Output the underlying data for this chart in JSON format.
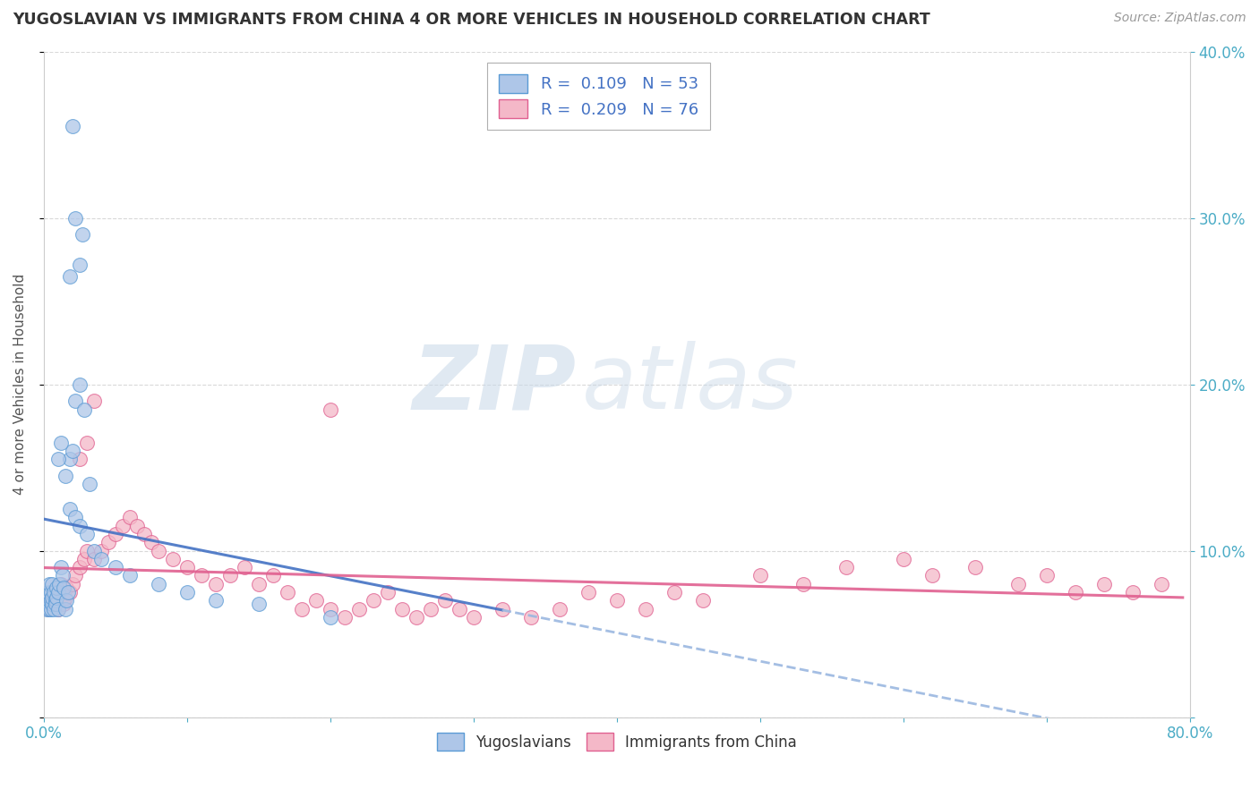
{
  "title": "YUGOSLAVIAN VS IMMIGRANTS FROM CHINA 4 OR MORE VEHICLES IN HOUSEHOLD CORRELATION CHART",
  "source": "Source: ZipAtlas.com",
  "ylabel": "4 or more Vehicles in Household",
  "xlim": [
    0.0,
    0.8
  ],
  "ylim": [
    0.0,
    0.4
  ],
  "series_blue": {
    "label": "Yugoslavians",
    "R": 0.109,
    "N": 53,
    "color": "#aec6e8",
    "edge_color": "#5b9bd5",
    "x": [
      0.002,
      0.003,
      0.003,
      0.004,
      0.004,
      0.005,
      0.005,
      0.005,
      0.006,
      0.006,
      0.006,
      0.007,
      0.007,
      0.008,
      0.008,
      0.009,
      0.009,
      0.01,
      0.01,
      0.011,
      0.012,
      0.013,
      0.014,
      0.015,
      0.016,
      0.017,
      0.018,
      0.02,
      0.022,
      0.025,
      0.028,
      0.032,
      0.01,
      0.012,
      0.015,
      0.018,
      0.022,
      0.025,
      0.03,
      0.035,
      0.04,
      0.05,
      0.06,
      0.08,
      0.1,
      0.12,
      0.15,
      0.2,
      0.025,
      0.027,
      0.022,
      0.02,
      0.018
    ],
    "y": [
      0.065,
      0.07,
      0.075,
      0.065,
      0.08,
      0.07,
      0.065,
      0.075,
      0.068,
      0.072,
      0.08,
      0.075,
      0.065,
      0.07,
      0.068,
      0.072,
      0.078,
      0.075,
      0.065,
      0.08,
      0.09,
      0.085,
      0.078,
      0.065,
      0.07,
      0.075,
      0.155,
      0.16,
      0.19,
      0.2,
      0.185,
      0.14,
      0.155,
      0.165,
      0.145,
      0.125,
      0.12,
      0.115,
      0.11,
      0.1,
      0.095,
      0.09,
      0.085,
      0.08,
      0.075,
      0.07,
      0.068,
      0.06,
      0.272,
      0.29,
      0.3,
      0.355,
      0.265
    ]
  },
  "series_pink": {
    "label": "Immigrants from China",
    "R": 0.209,
    "N": 76,
    "color": "#f4b8c8",
    "edge_color": "#e06090",
    "x": [
      0.003,
      0.004,
      0.005,
      0.006,
      0.007,
      0.008,
      0.009,
      0.01,
      0.011,
      0.012,
      0.013,
      0.014,
      0.015,
      0.016,
      0.018,
      0.02,
      0.022,
      0.025,
      0.028,
      0.03,
      0.035,
      0.04,
      0.045,
      0.05,
      0.055,
      0.06,
      0.065,
      0.07,
      0.075,
      0.08,
      0.09,
      0.1,
      0.11,
      0.12,
      0.13,
      0.14,
      0.15,
      0.16,
      0.17,
      0.18,
      0.19,
      0.2,
      0.21,
      0.22,
      0.23,
      0.24,
      0.25,
      0.26,
      0.27,
      0.28,
      0.29,
      0.3,
      0.32,
      0.34,
      0.36,
      0.38,
      0.4,
      0.42,
      0.44,
      0.46,
      0.5,
      0.53,
      0.56,
      0.6,
      0.62,
      0.65,
      0.68,
      0.7,
      0.72,
      0.74,
      0.76,
      0.78,
      0.025,
      0.03,
      0.035,
      0.2
    ],
    "y": [
      0.065,
      0.07,
      0.068,
      0.072,
      0.075,
      0.07,
      0.068,
      0.065,
      0.075,
      0.08,
      0.07,
      0.068,
      0.072,
      0.078,
      0.075,
      0.08,
      0.085,
      0.09,
      0.095,
      0.1,
      0.095,
      0.1,
      0.105,
      0.11,
      0.115,
      0.12,
      0.115,
      0.11,
      0.105,
      0.1,
      0.095,
      0.09,
      0.085,
      0.08,
      0.085,
      0.09,
      0.08,
      0.085,
      0.075,
      0.065,
      0.07,
      0.065,
      0.06,
      0.065,
      0.07,
      0.075,
      0.065,
      0.06,
      0.065,
      0.07,
      0.065,
      0.06,
      0.065,
      0.06,
      0.065,
      0.075,
      0.07,
      0.065,
      0.075,
      0.07,
      0.085,
      0.08,
      0.09,
      0.095,
      0.085,
      0.09,
      0.08,
      0.085,
      0.075,
      0.08,
      0.075,
      0.08,
      0.155,
      0.165,
      0.19,
      0.185
    ]
  },
  "blue_line_color": "#4472c4",
  "blue_dash_color": "#9ab7e0",
  "pink_line_color": "#e06090",
  "watermark_zip": "ZIP",
  "watermark_atlas": "atlas",
  "background_color": "#ffffff",
  "grid_color": "#d0d0d0",
  "legend_label_color": "#4472c4",
  "tick_color": "#4bacc6"
}
